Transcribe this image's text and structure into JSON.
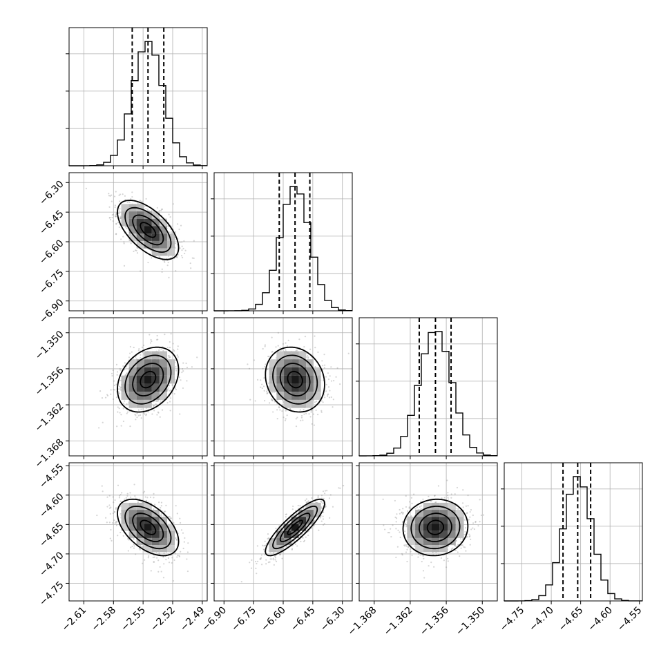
{
  "chart_data": {
    "type": "corner",
    "parameters": [
      {
        "range": [
          -2.625,
          -2.485
        ],
        "ticks": [
          "−2.61",
          "−2.58",
          "−2.55",
          "−2.52",
          "−2.49"
        ],
        "tick_values": [
          -2.61,
          -2.58,
          -2.55,
          -2.52,
          -2.49
        ],
        "median": -2.545,
        "q16": -2.561,
        "q84": -2.529,
        "sigma": 0.0155
      },
      {
        "range": [
          -6.95,
          -6.25
        ],
        "ticks": [
          "−6.90",
          "−6.75",
          "−6.60",
          "−6.45",
          "−6.30"
        ],
        "tick_values": [
          -6.9,
          -6.75,
          -6.6,
          -6.45,
          -6.3
        ],
        "median": -6.54,
        "q16": -6.62,
        "q84": -6.465,
        "sigma": 0.075
      },
      {
        "range": [
          -1.3705,
          -1.3475
        ],
        "ticks": [
          "−1.368",
          "−1.362",
          "−1.356",
          "−1.350"
        ],
        "tick_values": [
          -1.368,
          -1.362,
          -1.356,
          -1.35
        ],
        "median": -1.3578,
        "q16": -1.3605,
        "q84": -1.3552,
        "sigma": 0.0027
      },
      {
        "range": [
          -4.78,
          -4.545
        ],
        "ticks": [
          "−4.75",
          "−4.70",
          "−4.65",
          "−4.60",
          "−4.55"
        ],
        "tick_values": [
          -4.75,
          -4.7,
          -4.65,
          -4.6,
          -4.55
        ],
        "median": -4.655,
        "q16": -4.68,
        "q84": -4.633,
        "sigma": 0.024
      }
    ],
    "correlations": {
      "1-0": -0.6,
      "2-0": 0.3,
      "3-0": -0.5,
      "2-1": -0.15,
      "3-1": 0.85,
      "3-2": 0.05
    },
    "histogram_bins": 20,
    "grid": true
  }
}
